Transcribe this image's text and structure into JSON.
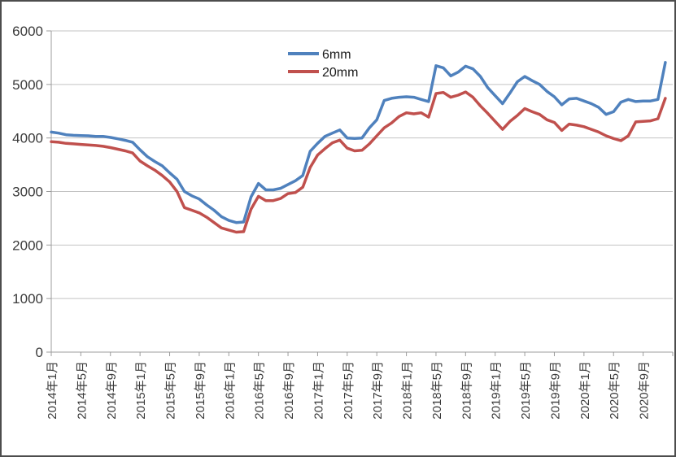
{
  "chart_data": {
    "type": "line",
    "title": "",
    "x_start": "2014年1月",
    "x_end": "2020年12月",
    "x_step": "1 month",
    "n_points": 84,
    "x_tick_labels": [
      "2014年1月",
      "2014年5月",
      "2014年9月",
      "2015年1月",
      "2015年5月",
      "2015年9月",
      "2016年1月",
      "2016年5月",
      "2016年9月",
      "2017年1月",
      "2017年5月",
      "2017年9月",
      "2018年1月",
      "2018年5月",
      "2018年9月",
      "2019年1月",
      "2019年5月",
      "2019年9月",
      "2020年1月",
      "2020年5月",
      "2020年9月"
    ],
    "y_ticks": [
      "0",
      "1000",
      "2000",
      "3000",
      "4000",
      "5000",
      "6000"
    ],
    "ylim": [
      0,
      6000
    ],
    "grid": "horizontal",
    "legend_position": "top-center",
    "series": [
      {
        "name": "6mm",
        "color": "#4F81BD",
        "values": [
          4110,
          4090,
          4060,
          4050,
          4045,
          4040,
          4030,
          4030,
          4010,
          3985,
          3955,
          3920,
          3780,
          3650,
          3560,
          3480,
          3350,
          3230,
          3000,
          2920,
          2860,
          2750,
          2650,
          2530,
          2460,
          2420,
          2430,
          2900,
          3150,
          3030,
          3030,
          3060,
          3130,
          3200,
          3300,
          3750,
          3900,
          4030,
          4090,
          4150,
          4000,
          3990,
          4000,
          4190,
          4340,
          4700,
          4740,
          4760,
          4770,
          4760,
          4720,
          4680,
          5350,
          5310,
          5160,
          5230,
          5340,
          5290,
          5150,
          4940,
          4790,
          4640,
          4840,
          5050,
          5150,
          5070,
          5000,
          4870,
          4770,
          4620,
          4730,
          4740,
          4690,
          4640,
          4570,
          4440,
          4490,
          4670,
          4720,
          4680,
          4690,
          4690,
          4720,
          5410
        ]
      },
      {
        "name": "20mm",
        "color": "#C0504D",
        "values": [
          3930,
          3920,
          3900,
          3890,
          3880,
          3870,
          3860,
          3845,
          3820,
          3790,
          3760,
          3720,
          3570,
          3480,
          3400,
          3300,
          3180,
          3000,
          2700,
          2650,
          2600,
          2520,
          2420,
          2320,
          2280,
          2240,
          2250,
          2670,
          2910,
          2830,
          2830,
          2870,
          2960,
          2980,
          3080,
          3450,
          3680,
          3800,
          3910,
          3960,
          3810,
          3760,
          3770,
          3890,
          4040,
          4190,
          4280,
          4400,
          4470,
          4450,
          4470,
          4390,
          4830,
          4850,
          4760,
          4800,
          4860,
          4760,
          4600,
          4460,
          4310,
          4160,
          4310,
          4420,
          4550,
          4490,
          4440,
          4340,
          4290,
          4140,
          4260,
          4240,
          4210,
          4160,
          4110,
          4040,
          3990,
          3950,
          4040,
          4300,
          4310,
          4320,
          4360,
          4740
        ]
      }
    ],
    "style": {
      "gridline_color": "#c3c3c3",
      "axis_color": "#9c9c9c",
      "tick_label_color": "#3a3a3a",
      "line_width": 3.5
    }
  }
}
